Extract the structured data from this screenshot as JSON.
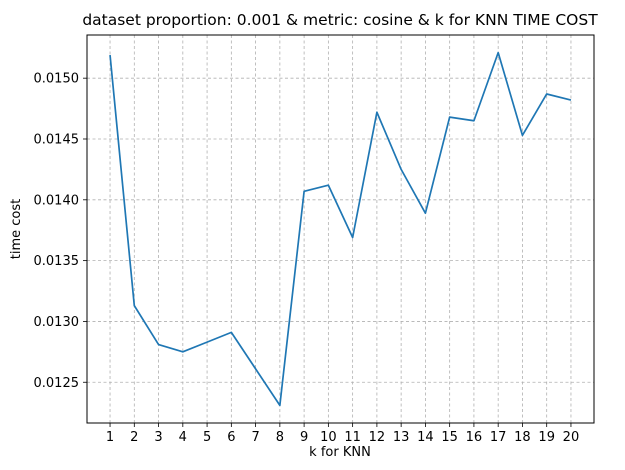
{
  "chart_data": {
    "type": "line",
    "title": "dataset proportion: 0.001 & metric: cosine & k for KNN TIME COST",
    "xlabel": "k for KNN",
    "ylabel": "time cost",
    "x": [
      1,
      2,
      3,
      4,
      5,
      6,
      7,
      8,
      9,
      10,
      11,
      12,
      13,
      14,
      15,
      16,
      17,
      18,
      19,
      20
    ],
    "series": [
      {
        "values": [
          0.01519,
          0.01313,
          0.01281,
          0.01275,
          0.01283,
          0.01291,
          0.01261,
          0.01231,
          0.01407,
          0.01412,
          0.01369,
          0.01472,
          0.01425,
          0.01389,
          0.01468,
          0.01465,
          0.01521,
          0.01453,
          0.01487,
          0.01482
        ],
        "color": "#1f77b4"
      }
    ],
    "xticks": [
      "1",
      "2",
      "3",
      "4",
      "5",
      "6",
      "7",
      "8",
      "9",
      "10",
      "11",
      "12",
      "13",
      "14",
      "15",
      "16",
      "17",
      "18",
      "19",
      "20"
    ],
    "yticks": [
      "0.0125",
      "0.0130",
      "0.0135",
      "0.0140",
      "0.0145",
      "0.0150"
    ],
    "ytick_values": [
      0.0125,
      0.013,
      0.0135,
      0.014,
      0.0145,
      0.015
    ],
    "xlim": [
      0.05,
      20.95
    ],
    "ylim": [
      0.012165,
      0.015355
    ],
    "grid": true
  }
}
